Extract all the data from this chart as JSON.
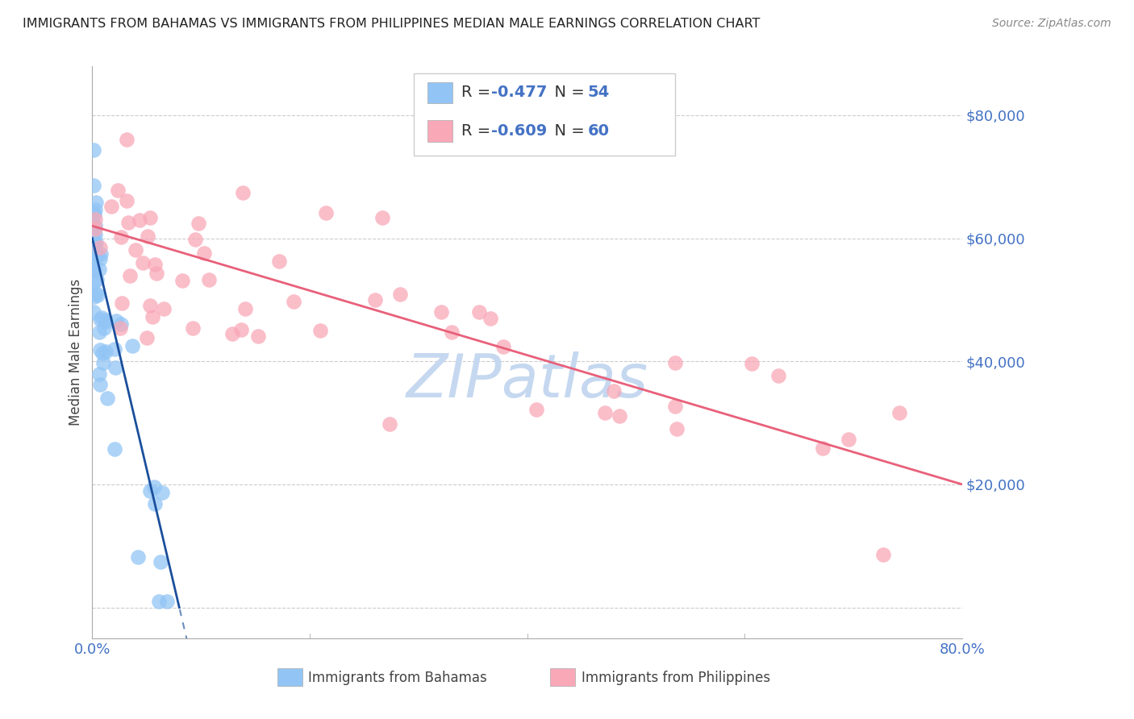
{
  "title": "IMMIGRANTS FROM BAHAMAS VS IMMIGRANTS FROM PHILIPPINES MEDIAN MALE EARNINGS CORRELATION CHART",
  "source": "Source: ZipAtlas.com",
  "ylabel": "Median Male Earnings",
  "ytick_values": [
    0,
    20000,
    40000,
    60000,
    80000
  ],
  "xlim": [
    0.0,
    0.8
  ],
  "ylim": [
    -5000,
    88000
  ],
  "legend_r_bahamas": "R = -0.477",
  "legend_n_bahamas": "N = 54",
  "legend_r_philippines": "R = -0.609",
  "legend_n_philippines": "N = 60",
  "color_bahamas": "#92C5F5",
  "color_philippines": "#F9A8B8",
  "color_bahamas_line": "#1A4F9C",
  "color_philippines_line": "#E8607A",
  "color_axis_labels": "#4472C4",
  "color_grid": "#CCCCCC",
  "color_watermark": "#C5D8F0",
  "bah_intercept": 60000,
  "bah_slope": -900000,
  "phi_intercept": 62000,
  "phi_slope": -52000,
  "legend_text_color": "#333333",
  "legend_value_color": "#4472C4"
}
